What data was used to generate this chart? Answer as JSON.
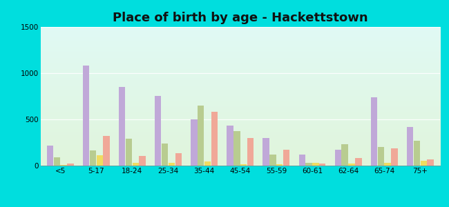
{
  "title": "Place of birth by age - Hackettstown",
  "categories": [
    "<5",
    "5-17",
    "18-24",
    "25-34",
    "35-44",
    "45-54",
    "55-59",
    "60-61",
    "62-64",
    "65-74",
    "75+"
  ],
  "series": {
    "Born in state of residence": [
      220,
      1080,
      850,
      750,
      500,
      430,
      300,
      120,
      170,
      740,
      420
    ],
    "Born in other state": [
      90,
      165,
      290,
      240,
      650,
      370,
      120,
      30,
      235,
      205,
      265
    ],
    "Native, outside of US": [
      8,
      110,
      28,
      32,
      42,
      18,
      12,
      28,
      22,
      32,
      50
    ],
    "Foreign-born": [
      22,
      320,
      105,
      135,
      585,
      300,
      170,
      22,
      80,
      190,
      65
    ]
  },
  "colors": {
    "Born in state of residence": "#c0a8d8",
    "Born in other state": "#b8cc90",
    "Native, outside of US": "#f0dc60",
    "Foreign-born": "#f0a898"
  },
  "legend_colors": {
    "Born in state of residence": "#e8b8d8",
    "Born in other state": "#d0dca8",
    "Native, outside of US": "#f8ec80",
    "Foreign-born": "#f8c0b8"
  },
  "ylim": [
    0,
    1500
  ],
  "yticks": [
    0,
    500,
    1000,
    1500
  ],
  "figure_bg": "#00dede",
  "title_fontsize": 13,
  "bar_width": 0.18
}
